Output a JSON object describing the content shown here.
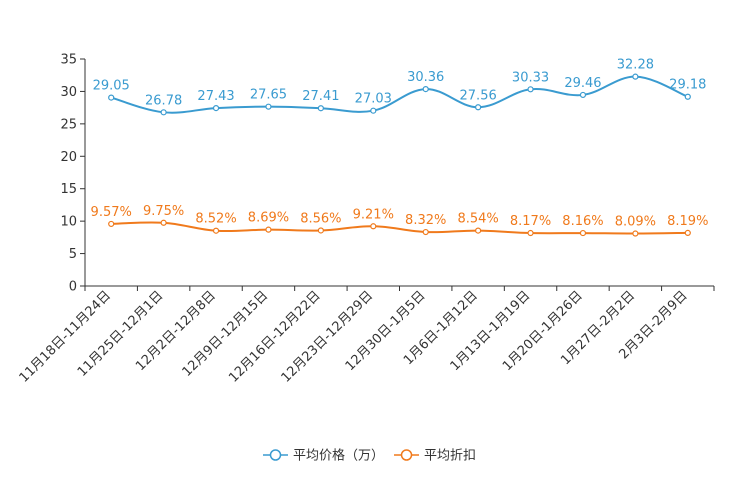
{
  "chart_data": {
    "type": "line",
    "title": "",
    "xlabel": "",
    "ylabel": "",
    "ylim": [
      0,
      35
    ],
    "yticks": [
      0,
      5,
      10,
      15,
      20,
      25,
      30,
      35
    ],
    "grid": false,
    "legend_position": "bottom-center",
    "categories": [
      "11月18日-11月24日",
      "11月25日-12月1日",
      "12月2日-12月8日",
      "12月9日-12月15日",
      "12月16日-12月22日",
      "12月23日-12月29日",
      "12月30日-1月5日",
      "1月6日-1月12日",
      "1月13日-1月19日",
      "1月20日-1月26日",
      "1月27日-2月2日",
      "2月3日-2月9日"
    ],
    "series": [
      {
        "name": "平均价格（万）",
        "color": "#3a9bd0",
        "values": [
          29.05,
          26.78,
          27.43,
          27.65,
          27.41,
          27.03,
          30.36,
          27.56,
          30.33,
          29.46,
          32.28,
          29.18
        ],
        "labels": [
          "29.05",
          "26.78",
          "27.43",
          "27.65",
          "27.41",
          "27.03",
          "30.36",
          "27.56",
          "30.33",
          "29.46",
          "32.28",
          "29.18"
        ]
      },
      {
        "name": "平均折扣",
        "color": "#f07a1c",
        "values": [
          9.57,
          9.75,
          8.52,
          8.69,
          8.56,
          9.21,
          8.32,
          8.54,
          8.17,
          8.16,
          8.09,
          8.19
        ],
        "labels": [
          "9.57%",
          "9.75%",
          "8.52%",
          "8.69%",
          "8.56%",
          "9.21%",
          "8.32%",
          "8.54%",
          "8.17%",
          "8.16%",
          "8.09%",
          "8.19%"
        ]
      }
    ]
  }
}
